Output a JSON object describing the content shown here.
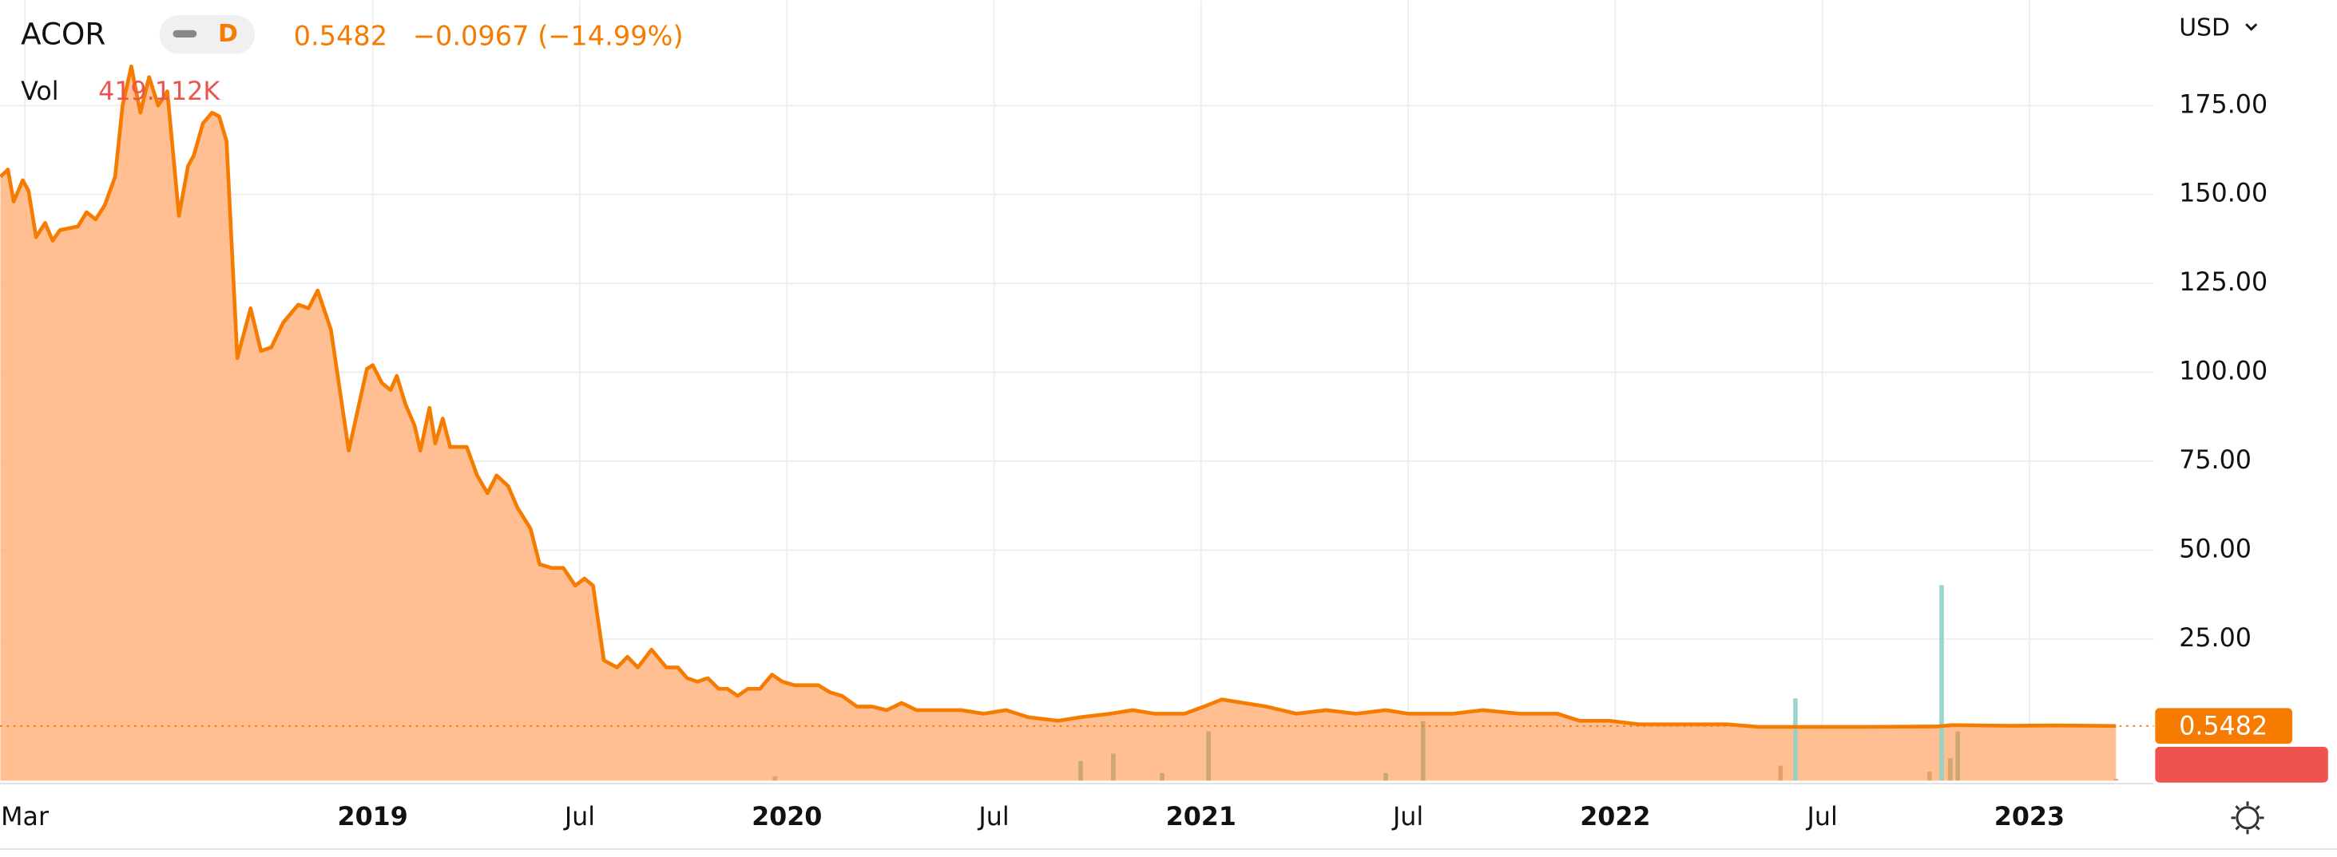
{
  "chart_data": {
    "type": "area",
    "symbol": "ACOR",
    "interval": "D",
    "change_label": "−0.0967 (−14.99%)",
    "volume_label": "Vol",
    "currency": "USD",
    "color": "#f57c00",
    "fill": "#ffb47f",
    "grid": true,
    "x": [
      2018.101,
      2018.119,
      2018.133,
      2018.155,
      2018.169,
      2018.187,
      2018.209,
      2018.227,
      2018.245,
      2018.288,
      2018.309,
      2018.331,
      2018.353,
      2018.378,
      2018.396,
      2018.417,
      2018.439,
      2018.46,
      2018.482,
      2018.504,
      2018.532,
      2018.554,
      2018.568,
      2018.59,
      2018.612,
      2018.629,
      2018.647,
      2018.673,
      2018.705,
      2018.73,
      2018.755,
      2018.784,
      2018.82,
      2018.845,
      2018.867,
      2018.899,
      2018.942,
      2018.986,
      2019.0,
      2019.022,
      2019.043,
      2019.058,
      2019.079,
      2019.101,
      2019.115,
      2019.137,
      2019.151,
      2019.169,
      2019.187,
      2019.227,
      2019.252,
      2019.277,
      2019.299,
      2019.327,
      2019.349,
      2019.381,
      2019.403,
      2019.432,
      2019.46,
      2019.489,
      2019.511,
      2019.532,
      2019.558,
      2019.59,
      2019.615,
      2019.64,
      2019.673,
      2019.709,
      2019.737,
      2019.759,
      2019.784,
      2019.809,
      2019.835,
      2019.856,
      2019.881,
      2019.906,
      2019.935,
      2019.964,
      2019.989,
      2020.018,
      2020.076,
      2020.104,
      2020.133,
      2020.169,
      2020.205,
      2020.241,
      2020.277,
      2020.313,
      2020.367,
      2020.421,
      2020.475,
      2020.529,
      2020.583,
      2020.655,
      2020.709,
      2020.781,
      2020.835,
      2020.888,
      2020.96,
      2021.007,
      2021.05,
      2021.104,
      2021.158,
      2021.23,
      2021.302,
      2021.374,
      2021.446,
      2021.5,
      2021.554,
      2021.608,
      2021.68,
      2021.77,
      2021.86,
      2021.914,
      2021.986,
      2022.058,
      2022.165,
      2022.273,
      2022.345,
      2022.417,
      2022.597,
      2022.777,
      2022.813,
      2022.957,
      2023.065,
      2023.209
    ],
    "values": [
      155,
      157,
      148,
      154,
      151,
      138,
      142,
      137,
      140,
      141,
      145,
      143,
      147,
      155,
      175,
      186,
      173,
      183,
      175,
      179,
      144,
      158,
      161,
      170,
      173,
      172,
      165,
      104,
      118,
      106,
      107,
      114,
      119,
      118,
      123,
      112,
      78,
      101,
      102,
      97,
      95,
      99,
      91,
      85,
      78,
      90,
      80,
      87,
      79,
      79,
      71,
      66,
      71,
      68,
      62,
      56,
      46,
      45,
      45,
      40,
      42,
      40,
      19,
      17,
      20,
      17,
      22,
      17,
      17,
      14,
      13,
      14,
      11,
      11,
      9,
      11,
      11,
      15,
      13,
      12,
      12,
      10,
      9,
      6,
      6,
      5,
      7,
      5,
      5,
      5,
      4,
      5,
      3,
      2,
      3,
      4,
      5,
      4,
      4,
      6,
      8,
      7,
      6,
      4,
      5,
      4,
      5,
      4,
      4,
      4,
      5,
      4,
      4,
      2,
      2,
      1,
      1,
      1,
      0.3,
      0.3,
      0.3,
      0.4,
      0.8,
      0.6,
      0.7,
      0.5482
    ],
    "xlim": [
      2018.1,
      2023.3
    ],
    "ylim": [
      -14.8,
      204.6
    ],
    "xticks": [
      {
        "value": 2018.16,
        "label": "Mar"
      },
      2019,
      {
        "value": 2019.5,
        "label": "Jul"
      },
      2020,
      {
        "value": 2020.5,
        "label": "Jul"
      },
      2021,
      {
        "value": 2021.5,
        "label": "Jul"
      },
      2022,
      {
        "value": 2022.5,
        "label": "Jul"
      },
      2023
    ],
    "yticks": [
      {
        "value": 25,
        "label": "25.00"
      },
      {
        "value": 50,
        "label": "50.00"
      },
      {
        "value": 75,
        "label": "75.00"
      },
      {
        "value": 100,
        "label": "100.00"
      },
      {
        "value": 125,
        "label": "125.00"
      },
      {
        "value": 150,
        "label": "150.00"
      },
      {
        "value": 175,
        "label": "175.00"
      }
    ],
    "volume": {
      "x": [
        2019.971,
        2020.709,
        2020.788,
        2020.906,
        2021.018,
        2021.446,
        2021.536,
        2022.399,
        2022.435,
        2022.759,
        2022.788,
        2022.809,
        2022.827,
        2023.209
      ],
      "values": [
        1100000,
        5000000,
        6900000,
        1900000,
        12600000,
        1900000,
        15200000,
        3800000,
        21000000,
        2300000,
        50000000,
        5700000,
        12600000,
        419112
      ],
      "value_labels": [
        null,
        null,
        null,
        null,
        null,
        null,
        null,
        null,
        null,
        null,
        null,
        null,
        null,
        "419.112K"
      ],
      "colors": [
        "#d9a06a",
        "#c9a46c",
        "#c9a46c",
        "#c9a46c",
        "#c9a46c",
        "#c9a46c",
        "#c9a46c",
        "#e39a68",
        "#8fd0c8",
        "#e39a68",
        "#8fd0c8",
        "#c9a46c",
        "#c9a46c",
        "#e39a68"
      ],
      "ylim": [
        0,
        80000000
      ]
    }
  }
}
